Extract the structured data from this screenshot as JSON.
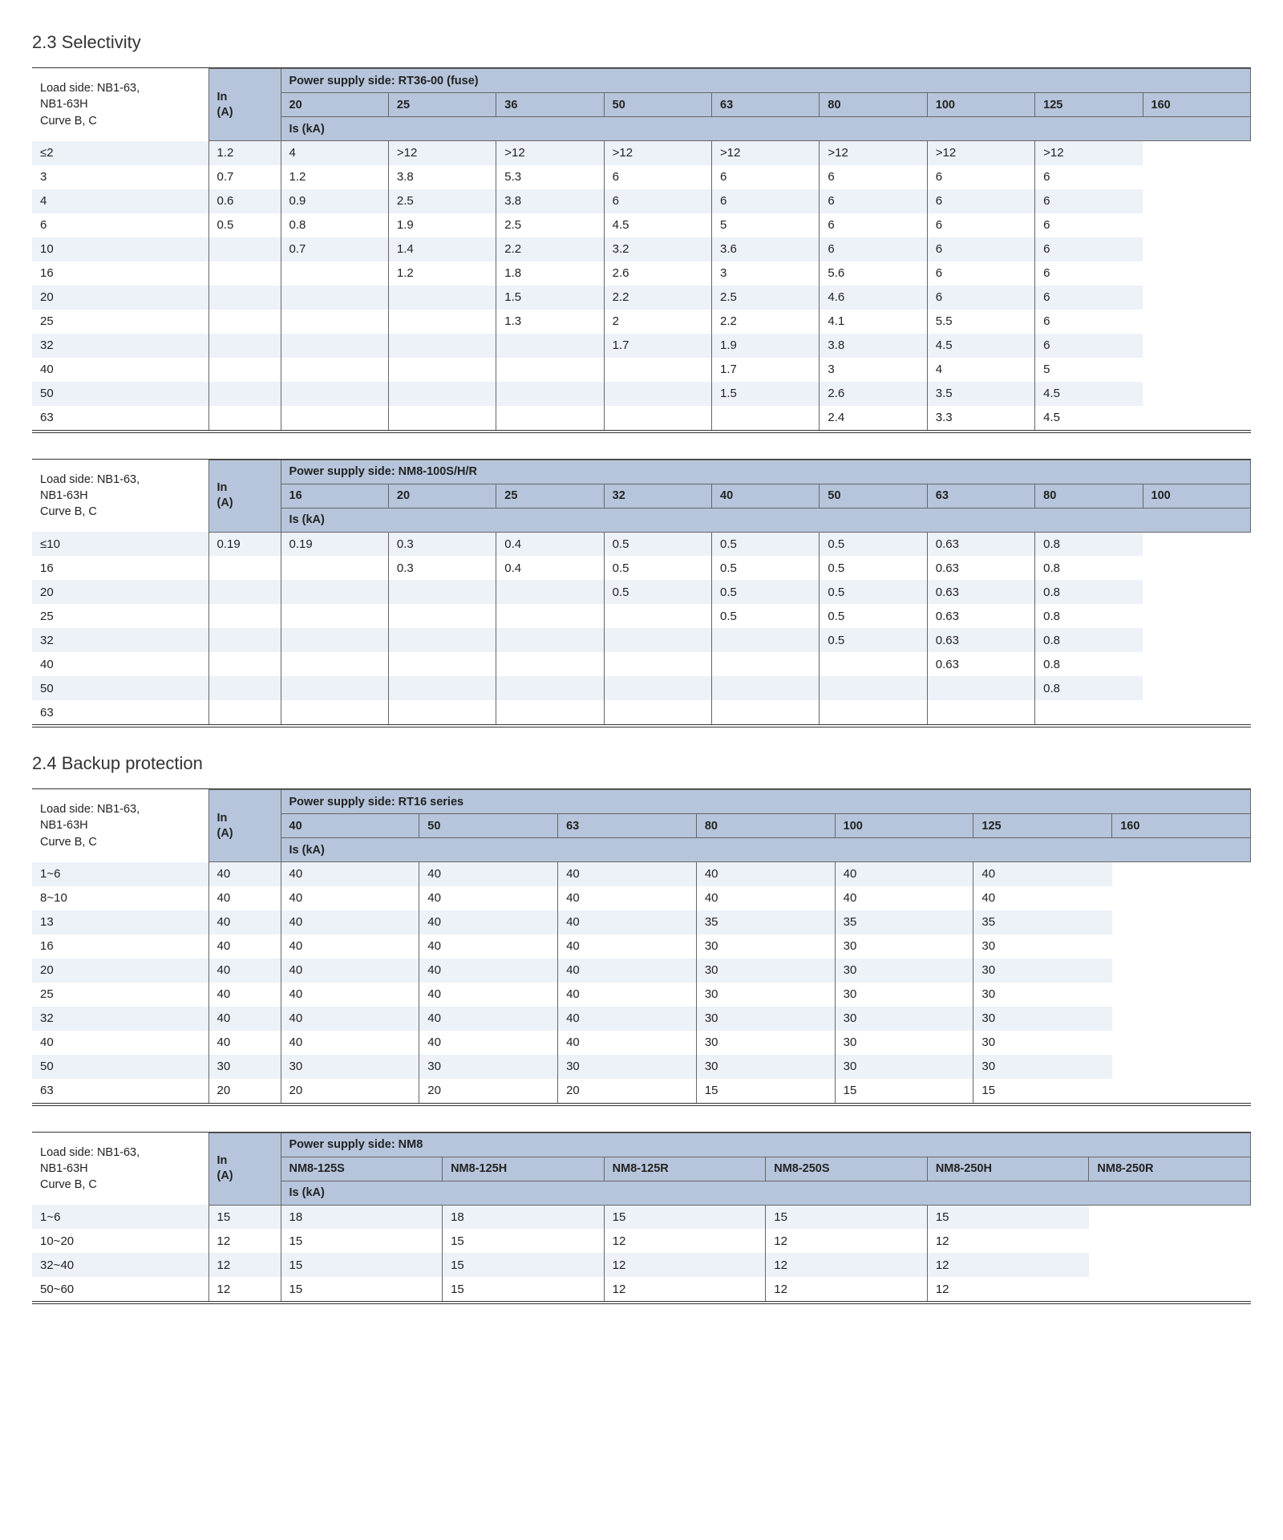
{
  "section1_title": "2.3 Selectivity",
  "section2_title": "2.4 Backup protection",
  "in_label_l1": "In",
  "in_label_l2": "(A)",
  "is_label": "Is (kA)",
  "load_side_l1": "Load side: NB1-63,",
  "load_side_l2": "NB1-63H",
  "load_side_l3": "Curve B, C",
  "t1": {
    "ps_title": "Power supply side: RT36-00 (fuse)",
    "cols": [
      "20",
      "25",
      "36",
      "50",
      "63",
      "80",
      "100",
      "125",
      "160"
    ],
    "rows": [
      {
        "h": "≤2",
        "v": [
          "1.2",
          "4",
          ">12",
          ">12",
          ">12",
          ">12",
          ">12",
          ">12",
          ">12"
        ]
      },
      {
        "h": "3",
        "v": [
          "0.7",
          "1.2",
          "3.8",
          "5.3",
          "6",
          "6",
          "6",
          "6",
          "6"
        ]
      },
      {
        "h": "4",
        "v": [
          "0.6",
          "0.9",
          "2.5",
          "3.8",
          "6",
          "6",
          "6",
          "6",
          "6"
        ]
      },
      {
        "h": "6",
        "v": [
          "0.5",
          "0.8",
          "1.9",
          "2.5",
          "4.5",
          "5",
          "6",
          "6",
          "6"
        ]
      },
      {
        "h": "10",
        "v": [
          "",
          "0.7",
          "1.4",
          "2.2",
          "3.2",
          "3.6",
          "6",
          "6",
          "6"
        ]
      },
      {
        "h": "16",
        "v": [
          "",
          "",
          "1.2",
          "1.8",
          "2.6",
          "3",
          "5.6",
          "6",
          "6"
        ]
      },
      {
        "h": "20",
        "v": [
          "",
          "",
          "",
          "1.5",
          "2.2",
          "2.5",
          "4.6",
          "6",
          "6"
        ]
      },
      {
        "h": "25",
        "v": [
          "",
          "",
          "",
          "1.3",
          "2",
          "2.2",
          "4.1",
          "5.5",
          "6"
        ]
      },
      {
        "h": "32",
        "v": [
          "",
          "",
          "",
          "",
          "1.7",
          "1.9",
          "3.8",
          "4.5",
          "6"
        ]
      },
      {
        "h": "40",
        "v": [
          "",
          "",
          "",
          "",
          "",
          "1.7",
          "3",
          "4",
          "5"
        ]
      },
      {
        "h": "50",
        "v": [
          "",
          "",
          "",
          "",
          "",
          "1.5",
          "2.6",
          "3.5",
          "4.5"
        ]
      },
      {
        "h": "63",
        "v": [
          "",
          "",
          "",
          "",
          "",
          "",
          "2.4",
          "3.3",
          "4.5"
        ]
      }
    ]
  },
  "t2": {
    "ps_title": "Power supply side: NM8-100S/H/R",
    "cols": [
      "16",
      "20",
      "25",
      "32",
      "40",
      "50",
      "63",
      "80",
      "100"
    ],
    "rows": [
      {
        "h": "≤10",
        "v": [
          "0.19",
          "0.19",
          "0.3",
          "0.4",
          "0.5",
          "0.5",
          "0.5",
          "0.63",
          "0.8"
        ]
      },
      {
        "h": "16",
        "v": [
          "",
          "",
          "0.3",
          "0.4",
          "0.5",
          "0.5",
          "0.5",
          "0.63",
          "0.8"
        ]
      },
      {
        "h": "20",
        "v": [
          "",
          "",
          "",
          "",
          "0.5",
          "0.5",
          "0.5",
          "0.63",
          "0.8"
        ]
      },
      {
        "h": "25",
        "v": [
          "",
          "",
          "",
          "",
          "",
          "0.5",
          "0.5",
          "0.63",
          "0.8"
        ]
      },
      {
        "h": "32",
        "v": [
          "",
          "",
          "",
          "",
          "",
          "",
          "0.5",
          "0.63",
          "0.8"
        ]
      },
      {
        "h": "40",
        "v": [
          "",
          "",
          "",
          "",
          "",
          "",
          "",
          "0.63",
          "0.8"
        ]
      },
      {
        "h": "50",
        "v": [
          "",
          "",
          "",
          "",
          "",
          "",
          "",
          "",
          "0.8"
        ]
      },
      {
        "h": "63",
        "v": [
          "",
          "",
          "",
          "",
          "",
          "",
          "",
          "",
          ""
        ]
      }
    ]
  },
  "t3": {
    "ps_title": "Power supply side: RT16 series",
    "cols": [
      "40",
      "50",
      "63",
      "80",
      "100",
      "125",
      "160"
    ],
    "rows": [
      {
        "h": "1~6",
        "v": [
          "40",
          "40",
          "40",
          "40",
          "40",
          "40",
          "40"
        ]
      },
      {
        "h": "8~10",
        "v": [
          "40",
          "40",
          "40",
          "40",
          "40",
          "40",
          "40"
        ]
      },
      {
        "h": "13",
        "v": [
          "40",
          "40",
          "40",
          "40",
          "35",
          "35",
          "35"
        ]
      },
      {
        "h": "16",
        "v": [
          "40",
          "40",
          "40",
          "40",
          "30",
          "30",
          "30"
        ]
      },
      {
        "h": "20",
        "v": [
          "40",
          "40",
          "40",
          "40",
          "30",
          "30",
          "30"
        ]
      },
      {
        "h": "25",
        "v": [
          "40",
          "40",
          "40",
          "40",
          "30",
          "30",
          "30"
        ]
      },
      {
        "h": "32",
        "v": [
          "40",
          "40",
          "40",
          "40",
          "30",
          "30",
          "30"
        ]
      },
      {
        "h": "40",
        "v": [
          "40",
          "40",
          "40",
          "40",
          "30",
          "30",
          "30"
        ]
      },
      {
        "h": "50",
        "v": [
          "30",
          "30",
          "30",
          "30",
          "30",
          "30",
          "30"
        ]
      },
      {
        "h": "63",
        "v": [
          "20",
          "20",
          "20",
          "20",
          "15",
          "15",
          "15"
        ]
      }
    ]
  },
  "t4": {
    "ps_title": "Power supply side: NM8",
    "cols": [
      "NM8-125S",
      "NM8-125H",
      "NM8-125R",
      "NM8-250S",
      "NM8-250H",
      "NM8-250R"
    ],
    "rows": [
      {
        "h": "1~6",
        "v": [
          "15",
          "18",
          "18",
          "15",
          "15",
          "15"
        ]
      },
      {
        "h": "10~20",
        "v": [
          "12",
          "15",
          "15",
          "12",
          "12",
          "12"
        ]
      },
      {
        "h": "32~40",
        "v": [
          "12",
          "15",
          "15",
          "12",
          "12",
          "12"
        ]
      },
      {
        "h": "50~60",
        "v": [
          "12",
          "15",
          "15",
          "12",
          "12",
          "12"
        ]
      }
    ]
  }
}
